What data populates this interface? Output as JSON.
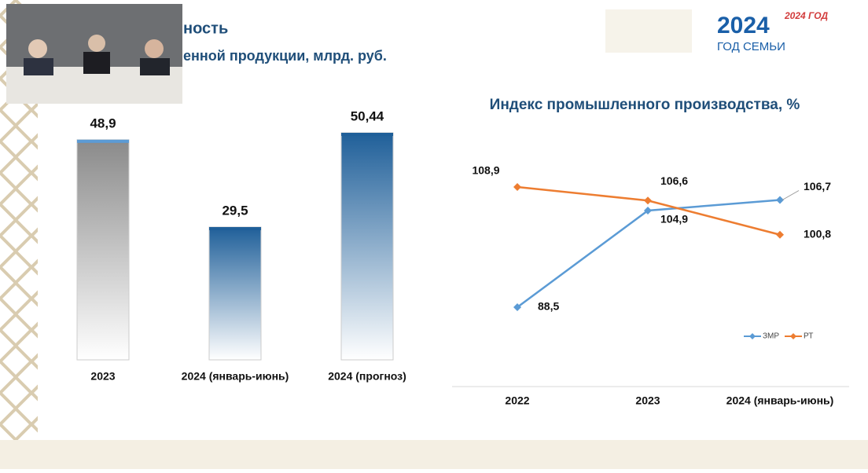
{
  "header": {
    "line1": "ность",
    "line2": "енной продукции, млрд. руб."
  },
  "logos": {
    "year": "2024",
    "family": "ГОД СЕМЬИ",
    "right": "2024 ГОД"
  },
  "chart_data": [
    {
      "type": "bar",
      "categories": [
        "2023",
        "2024 (январь-июнь)",
        "2024 (прогноз)"
      ],
      "values": [
        48.9,
        29.5,
        50.44
      ],
      "value_labels": [
        "48,9",
        "29,5",
        "50,44"
      ],
      "colors": [
        "#8a8a8a",
        "#1f5f99",
        "#1f5f99"
      ]
    },
    {
      "type": "line",
      "title": "Индекс промышленного производства, %",
      "categories": [
        "2022",
        "2023",
        "2024 (январь-июнь)"
      ],
      "series": [
        {
          "name": "ЗМР",
          "color": "#5b9bd5",
          "values": [
            88.5,
            104.9,
            106.7
          ],
          "value_labels": [
            "88,5",
            "104,9",
            "106,7"
          ]
        },
        {
          "name": "РТ",
          "color": "#ed7d31",
          "values": [
            108.9,
            106.6,
            100.8
          ],
          "value_labels": [
            "108,9",
            "106,6",
            "100,8"
          ]
        }
      ],
      "legend": "lower right"
    }
  ]
}
